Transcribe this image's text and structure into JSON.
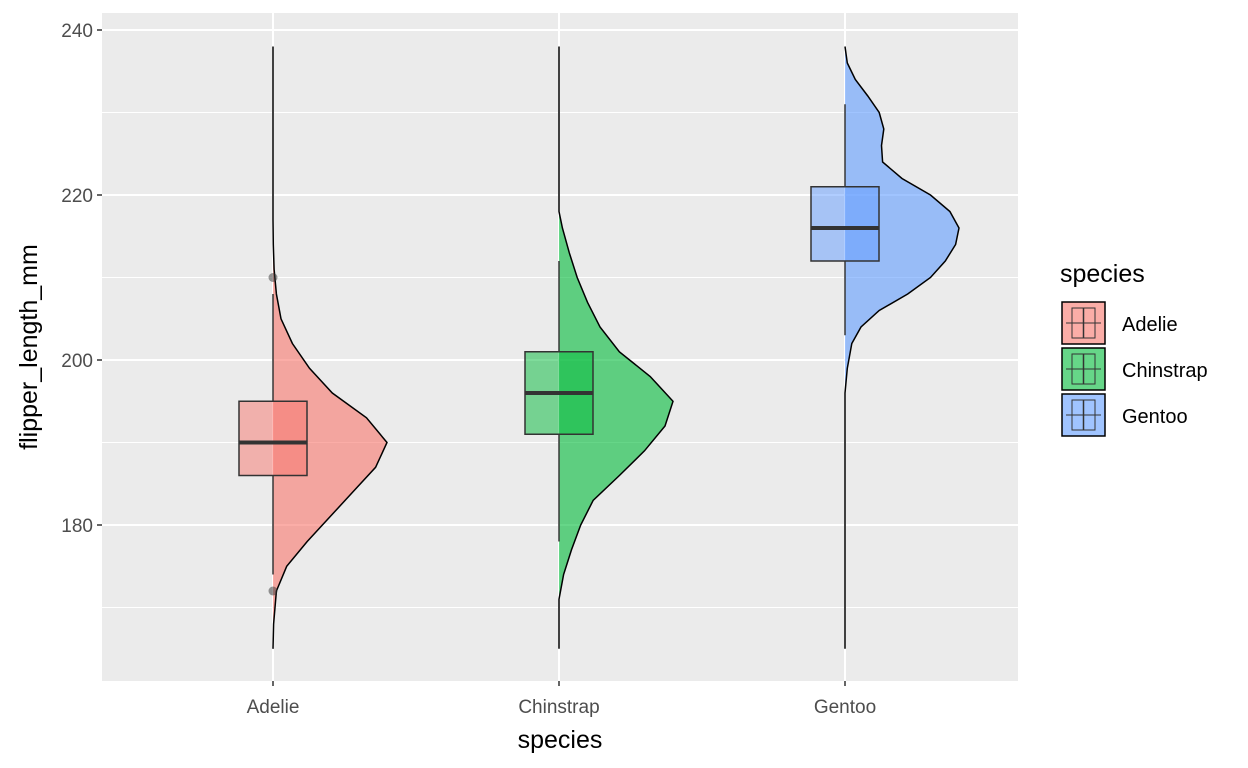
{
  "chart_data": {
    "type": "violin",
    "subtype": "half-violin with boxplot",
    "xlabel": "species",
    "ylabel": "flipper_length_mm",
    "ylim": [
      162,
      242
    ],
    "y_ticks": [
      180,
      200,
      220,
      240
    ],
    "categories": [
      "Adelie",
      "Chinstrap",
      "Gentoo"
    ],
    "grid": true,
    "legend": {
      "title": "species",
      "position": "right",
      "entries": [
        "Adelie",
        "Chinstrap",
        "Gentoo"
      ]
    },
    "colors": {
      "Adelie": "#F8766D",
      "Chinstrap": "#00BA38",
      "Gentoo": "#619CFF",
      "panel": "#EBEBEB",
      "gridline": "#FFFFFF"
    },
    "boxes": [
      {
        "name": "Adelie",
        "whisker_low": 174,
        "q1": 186,
        "median": 190,
        "q3": 195,
        "whisker_high": 208,
        "outliers": [
          172,
          210
        ]
      },
      {
        "name": "Chinstrap",
        "whisker_low": 178,
        "q1": 191,
        "median": 196,
        "q3": 201,
        "whisker_high": 212,
        "outliers": []
      },
      {
        "name": "Gentoo",
        "whisker_low": 203,
        "q1": 212,
        "median": 216,
        "q3": 221,
        "whisker_high": 231,
        "outliers": []
      }
    ],
    "densities": [
      {
        "name": "Adelie",
        "points": [
          [
            165,
            0
          ],
          [
            168,
            0.005
          ],
          [
            172,
            0.03
          ],
          [
            175,
            0.12
          ],
          [
            178,
            0.3
          ],
          [
            181,
            0.5
          ],
          [
            184,
            0.7
          ],
          [
            187,
            0.9
          ],
          [
            190,
            1.0
          ],
          [
            193,
            0.82
          ],
          [
            196,
            0.52
          ],
          [
            199,
            0.32
          ],
          [
            202,
            0.17
          ],
          [
            205,
            0.07
          ],
          [
            208,
            0.03
          ],
          [
            211,
            0.01
          ],
          [
            214,
            0.003
          ],
          [
            217,
            0
          ],
          [
            238,
            0
          ]
        ]
      },
      {
        "name": "Chinstrap",
        "points": [
          [
            165,
            0
          ],
          [
            171,
            0
          ],
          [
            174,
            0.04
          ],
          [
            177,
            0.11
          ],
          [
            180,
            0.19
          ],
          [
            183,
            0.3
          ],
          [
            186,
            0.53
          ],
          [
            189,
            0.75
          ],
          [
            192,
            0.93
          ],
          [
            195,
            1.0
          ],
          [
            198,
            0.8
          ],
          [
            201,
            0.53
          ],
          [
            204,
            0.36
          ],
          [
            207,
            0.25
          ],
          [
            210,
            0.16
          ],
          [
            213,
            0.09
          ],
          [
            216,
            0.03
          ],
          [
            218,
            0
          ],
          [
            238,
            0
          ]
        ]
      },
      {
        "name": "Gentoo",
        "points": [
          [
            165,
            0
          ],
          [
            196,
            0
          ],
          [
            199,
            0.02
          ],
          [
            202,
            0.06
          ],
          [
            204,
            0.14
          ],
          [
            206,
            0.3
          ],
          [
            208,
            0.55
          ],
          [
            210,
            0.75
          ],
          [
            212,
            0.88
          ],
          [
            214,
            0.97
          ],
          [
            216,
            1.0
          ],
          [
            218,
            0.92
          ],
          [
            220,
            0.75
          ],
          [
            222,
            0.5
          ],
          [
            224,
            0.33
          ],
          [
            226,
            0.32
          ],
          [
            228,
            0.34
          ],
          [
            230,
            0.3
          ],
          [
            232,
            0.2
          ],
          [
            234,
            0.09
          ],
          [
            236,
            0.02
          ],
          [
            238,
            0
          ]
        ]
      }
    ]
  }
}
